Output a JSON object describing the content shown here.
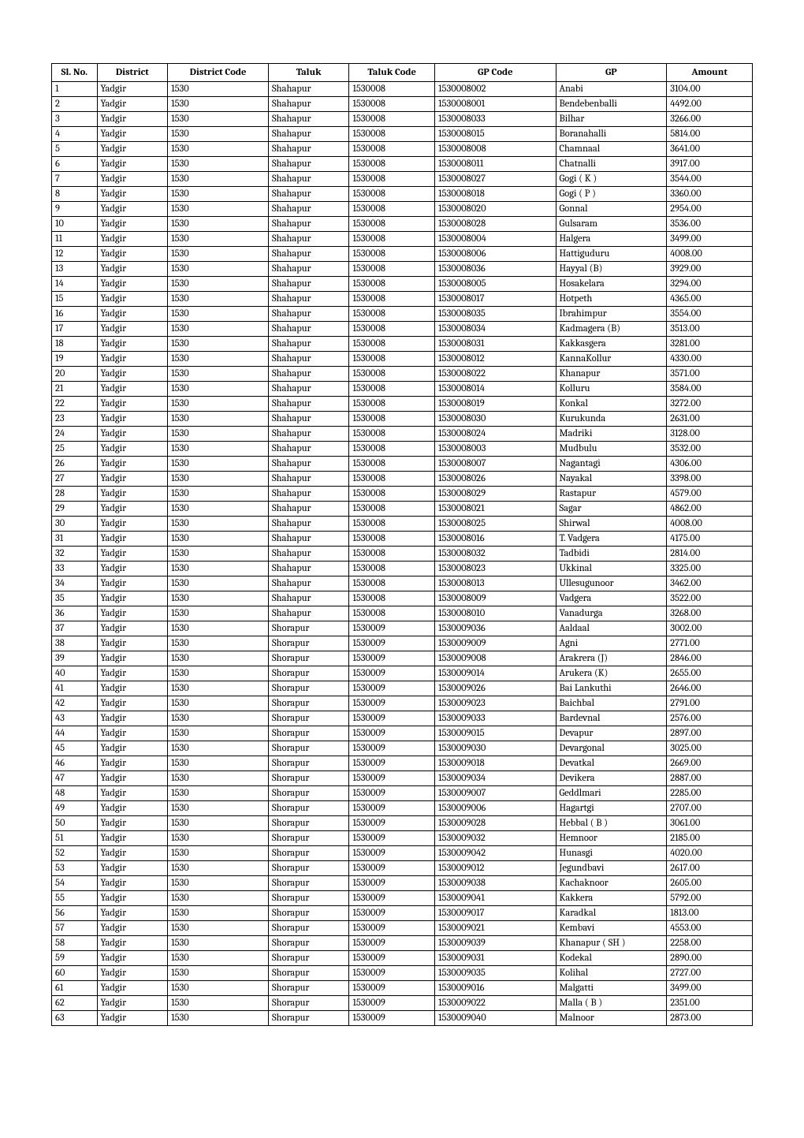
{
  "columns": [
    {
      "key": "slno",
      "label": "Sl. No.",
      "class": "col-slno"
    },
    {
      "key": "district",
      "label": "District",
      "class": "col-district"
    },
    {
      "key": "distcode",
      "label": "District Code",
      "class": "col-distcode"
    },
    {
      "key": "taluk",
      "label": "Taluk",
      "class": "col-taluk"
    },
    {
      "key": "talukcode",
      "label": "Taluk Code",
      "class": "col-talukcode"
    },
    {
      "key": "gpcode",
      "label": "GP Code",
      "class": "col-gpcode"
    },
    {
      "key": "gp",
      "label": "GP",
      "class": "col-gp"
    },
    {
      "key": "amount",
      "label": "Amount",
      "class": "col-amount"
    }
  ],
  "rows": [
    [
      "1",
      "Yadgir",
      "1530",
      "Shahapur",
      "1530008",
      "1530008002",
      "Anabi",
      "3104.00"
    ],
    [
      "2",
      "Yadgir",
      "1530",
      "Shahapur",
      "1530008",
      "1530008001",
      "Bendebenballi",
      "4492.00"
    ],
    [
      "3",
      "Yadgir",
      "1530",
      "Shahapur",
      "1530008",
      "1530008033",
      "Bilhar",
      "3266.00"
    ],
    [
      "4",
      "Yadgir",
      "1530",
      "Shahapur",
      "1530008",
      "1530008015",
      "Boranahalli",
      "5814.00"
    ],
    [
      "5",
      "Yadgir",
      "1530",
      "Shahapur",
      "1530008",
      "1530008008",
      "Chamnaal",
      "3641.00"
    ],
    [
      "6",
      "Yadgir",
      "1530",
      "Shahapur",
      "1530008",
      "1530008011",
      "Chatnalli",
      "3917.00"
    ],
    [
      "7",
      "Yadgir",
      "1530",
      "Shahapur",
      "1530008",
      "1530008027",
      "Gogi ( K )",
      "3544.00"
    ],
    [
      "8",
      "Yadgir",
      "1530",
      "Shahapur",
      "1530008",
      "1530008018",
      "Gogi ( P )",
      "3360.00"
    ],
    [
      "9",
      "Yadgir",
      "1530",
      "Shahapur",
      "1530008",
      "1530008020",
      "Gonnal",
      "2954.00"
    ],
    [
      "10",
      "Yadgir",
      "1530",
      "Shahapur",
      "1530008",
      "1530008028",
      "Gulsaram",
      "3536.00"
    ],
    [
      "11",
      "Yadgir",
      "1530",
      "Shahapur",
      "1530008",
      "1530008004",
      "Halgera",
      "3499.00"
    ],
    [
      "12",
      "Yadgir",
      "1530",
      "Shahapur",
      "1530008",
      "1530008006",
      "Hattiguduru",
      "4008.00"
    ],
    [
      "13",
      "Yadgir",
      "1530",
      "Shahapur",
      "1530008",
      "1530008036",
      "Hayyal (B)",
      "3929.00"
    ],
    [
      "14",
      "Yadgir",
      "1530",
      "Shahapur",
      "1530008",
      "1530008005",
      "Hosakelara",
      "3294.00"
    ],
    [
      "15",
      "Yadgir",
      "1530",
      "Shahapur",
      "1530008",
      "1530008017",
      "Hotpeth",
      "4365.00"
    ],
    [
      "16",
      "Yadgir",
      "1530",
      "Shahapur",
      "1530008",
      "1530008035",
      "Ibrahimpur",
      "3554.00"
    ],
    [
      "17",
      "Yadgir",
      "1530",
      "Shahapur",
      "1530008",
      "1530008034",
      "Kadmagera (B)",
      "3513.00"
    ],
    [
      "18",
      "Yadgir",
      "1530",
      "Shahapur",
      "1530008",
      "1530008031",
      "Kakkasgera",
      "3281.00"
    ],
    [
      "19",
      "Yadgir",
      "1530",
      "Shahapur",
      "1530008",
      "1530008012",
      "KannaKollur",
      "4330.00"
    ],
    [
      "20",
      "Yadgir",
      "1530",
      "Shahapur",
      "1530008",
      "1530008022",
      "Khanapur",
      "3571.00"
    ],
    [
      "21",
      "Yadgir",
      "1530",
      "Shahapur",
      "1530008",
      "1530008014",
      "Kolluru",
      "3584.00"
    ],
    [
      "22",
      "Yadgir",
      "1530",
      "Shahapur",
      "1530008",
      "1530008019",
      "Konkal",
      "3272.00"
    ],
    [
      "23",
      "Yadgir",
      "1530",
      "Shahapur",
      "1530008",
      "1530008030",
      "Kurukunda",
      "2631.00"
    ],
    [
      "24",
      "Yadgir",
      "1530",
      "Shahapur",
      "1530008",
      "1530008024",
      "Madriki",
      "3128.00"
    ],
    [
      "25",
      "Yadgir",
      "1530",
      "Shahapur",
      "1530008",
      "1530008003",
      "Mudbulu",
      "3532.00"
    ],
    [
      "26",
      "Yadgir",
      "1530",
      "Shahapur",
      "1530008",
      "1530008007",
      "Nagantagi",
      "4306.00"
    ],
    [
      "27",
      "Yadgir",
      "1530",
      "Shahapur",
      "1530008",
      "1530008026",
      "Nayakal",
      "3398.00"
    ],
    [
      "28",
      "Yadgir",
      "1530",
      "Shahapur",
      "1530008",
      "1530008029",
      "Rastapur",
      "4579.00"
    ],
    [
      "29",
      "Yadgir",
      "1530",
      "Shahapur",
      "1530008",
      "1530008021",
      "Sagar",
      "4862.00"
    ],
    [
      "30",
      "Yadgir",
      "1530",
      "Shahapur",
      "1530008",
      "1530008025",
      "Shirwal",
      "4008.00"
    ],
    [
      "31",
      "Yadgir",
      "1530",
      "Shahapur",
      "1530008",
      "1530008016",
      "T. Vadgera",
      "4175.00"
    ],
    [
      "32",
      "Yadgir",
      "1530",
      "Shahapur",
      "1530008",
      "1530008032",
      "Tadbidi",
      "2814.00"
    ],
    [
      "33",
      "Yadgir",
      "1530",
      "Shahapur",
      "1530008",
      "1530008023",
      "Ukkinal",
      "3325.00"
    ],
    [
      "34",
      "Yadgir",
      "1530",
      "Shahapur",
      "1530008",
      "1530008013",
      "Ullesugunoor",
      "3462.00"
    ],
    [
      "35",
      "Yadgir",
      "1530",
      "Shahapur",
      "1530008",
      "1530008009",
      "Vadgera",
      "3522.00"
    ],
    [
      "36",
      "Yadgir",
      "1530",
      "Shahapur",
      "1530008",
      "1530008010",
      "Vanadurga",
      "3268.00"
    ],
    [
      "37",
      "Yadgir",
      "1530",
      "Shorapur",
      "1530009",
      "1530009036",
      "Aaldaal",
      "3002.00"
    ],
    [
      "38",
      "Yadgir",
      "1530",
      "Shorapur",
      "1530009",
      "1530009009",
      "Agni",
      "2771.00"
    ],
    [
      "39",
      "Yadgir",
      "1530",
      "Shorapur",
      "1530009",
      "1530009008",
      "Arakrera (J)",
      "2846.00"
    ],
    [
      "40",
      "Yadgir",
      "1530",
      "Shorapur",
      "1530009",
      "1530009014",
      "Arukera (K)",
      "2655.00"
    ],
    [
      "41",
      "Yadgir",
      "1530",
      "Shorapur",
      "1530009",
      "1530009026",
      "Bai Lankuthi",
      "2646.00"
    ],
    [
      "42",
      "Yadgir",
      "1530",
      "Shorapur",
      "1530009",
      "1530009023",
      "Baichbal",
      "2791.00"
    ],
    [
      "43",
      "Yadgir",
      "1530",
      "Shorapur",
      "1530009",
      "1530009033",
      "Bardevnal",
      "2576.00"
    ],
    [
      "44",
      "Yadgir",
      "1530",
      "Shorapur",
      "1530009",
      "1530009015",
      "Devapur",
      "2897.00"
    ],
    [
      "45",
      "Yadgir",
      "1530",
      "Shorapur",
      "1530009",
      "1530009030",
      "Devargonal",
      "3025.00"
    ],
    [
      "46",
      "Yadgir",
      "1530",
      "Shorapur",
      "1530009",
      "1530009018",
      "Devatkal",
      "2669.00"
    ],
    [
      "47",
      "Yadgir",
      "1530",
      "Shorapur",
      "1530009",
      "1530009034",
      "Devikera",
      "2887.00"
    ],
    [
      "48",
      "Yadgir",
      "1530",
      "Shorapur",
      "1530009",
      "1530009007",
      "Geddlmari",
      "2285.00"
    ],
    [
      "49",
      "Yadgir",
      "1530",
      "Shorapur",
      "1530009",
      "1530009006",
      "Hagartgi",
      "2707.00"
    ],
    [
      "50",
      "Yadgir",
      "1530",
      "Shorapur",
      "1530009",
      "1530009028",
      "Hebbal ( B )",
      "3061.00"
    ],
    [
      "51",
      "Yadgir",
      "1530",
      "Shorapur",
      "1530009",
      "1530009032",
      "Hemnoor",
      "2185.00"
    ],
    [
      "52",
      "Yadgir",
      "1530",
      "Shorapur",
      "1530009",
      "1530009042",
      "Hunasgi",
      "4020.00"
    ],
    [
      "53",
      "Yadgir",
      "1530",
      "Shorapur",
      "1530009",
      "1530009012",
      "Jegundbavi",
      "2617.00"
    ],
    [
      "54",
      "Yadgir",
      "1530",
      "Shorapur",
      "1530009",
      "1530009038",
      "Kachaknoor",
      "2605.00"
    ],
    [
      "55",
      "Yadgir",
      "1530",
      "Shorapur",
      "1530009",
      "1530009041",
      "Kakkera",
      "5792.00"
    ],
    [
      "56",
      "Yadgir",
      "1530",
      "Shorapur",
      "1530009",
      "1530009017",
      "Karadkal",
      "1813.00"
    ],
    [
      "57",
      "Yadgir",
      "1530",
      "Shorapur",
      "1530009",
      "1530009021",
      "Kembavi",
      "4553.00"
    ],
    [
      "58",
      "Yadgir",
      "1530",
      "Shorapur",
      "1530009",
      "1530009039",
      "Khanapur ( SH )",
      "2258.00"
    ],
    [
      "59",
      "Yadgir",
      "1530",
      "Shorapur",
      "1530009",
      "1530009031",
      "Kodekal",
      "2890.00"
    ],
    [
      "60",
      "Yadgir",
      "1530",
      "Shorapur",
      "1530009",
      "1530009035",
      "Kolihal",
      "2727.00"
    ],
    [
      "61",
      "Yadgir",
      "1530",
      "Shorapur",
      "1530009",
      "1530009016",
      "Malgatti",
      "3499.00"
    ],
    [
      "62",
      "Yadgir",
      "1530",
      "Shorapur",
      "1530009",
      "1530009022",
      "Malla ( B )",
      "2351.00"
    ],
    [
      "63",
      "Yadgir",
      "1530",
      "Shorapur",
      "1530009",
      "1530009040",
      "Malnoor",
      "2873.00"
    ]
  ]
}
